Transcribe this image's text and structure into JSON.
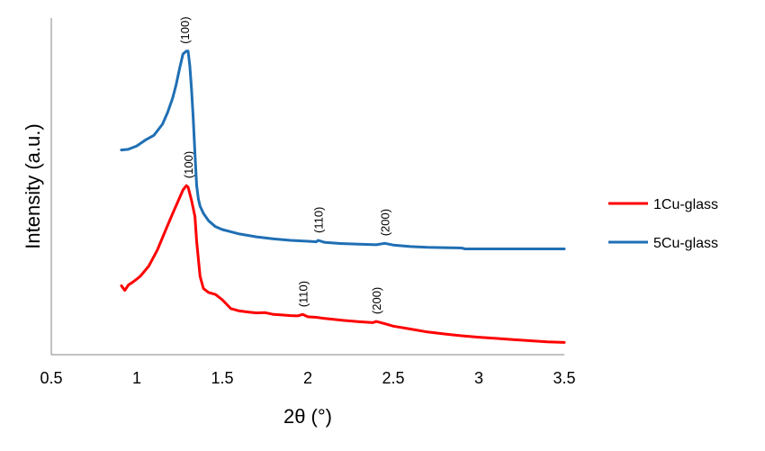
{
  "chart_data": {
    "type": "line",
    "xlabel": "2θ (°)",
    "ylabel": "Intensity (a.u.)",
    "xlim": [
      0.5,
      3.5
    ],
    "ylim": [
      0,
      100
    ],
    "x_ticks": [
      "0.5",
      "1",
      "1.5",
      "2",
      "2.5",
      "3",
      "3.5"
    ],
    "x_tick_values": [
      0.5,
      1,
      1.5,
      2,
      2.5,
      3,
      3.5
    ],
    "y_ticks_shown": false,
    "grid": false,
    "legend_position": "right",
    "series": [
      {
        "name": "1Cu-glass",
        "color": "#ff0000",
        "x": [
          0.91,
          0.93,
          0.95,
          0.98,
          1.02,
          1.07,
          1.12,
          1.17,
          1.21,
          1.24,
          1.27,
          1.29,
          1.3,
          1.32,
          1.34,
          1.35,
          1.37,
          1.39,
          1.42,
          1.46,
          1.5,
          1.55,
          1.6,
          1.65,
          1.7,
          1.75,
          1.8,
          1.85,
          1.9,
          1.94,
          1.97,
          2.0,
          2.05,
          2.1,
          2.2,
          2.3,
          2.38,
          2.4,
          2.45,
          2.5,
          2.6,
          2.7,
          2.8,
          2.9,
          3.0,
          3.1,
          3.2,
          3.3,
          3.4,
          3.5
        ],
        "y": [
          20.8,
          19.2,
          21.0,
          22.2,
          24.0,
          27.5,
          33.0,
          40.0,
          45.5,
          49.5,
          53.5,
          55.0,
          54.5,
          50.0,
          44.5,
          36.0,
          24.0,
          19.8,
          18.5,
          17.8,
          16.0,
          13.0,
          12.2,
          11.8,
          11.5,
          11.6,
          11.0,
          10.8,
          10.6,
          10.5,
          11.0,
          10.2,
          10.0,
          9.6,
          9.0,
          8.5,
          8.2,
          8.6,
          7.8,
          7.0,
          6.0,
          5.0,
          4.3,
          3.7,
          3.2,
          2.8,
          2.4,
          2.0,
          1.6,
          1.4
        ],
        "peak_labels": [
          {
            "x": 1.3,
            "y": 55.0,
            "text": "(100)"
          },
          {
            "x": 1.97,
            "y": 11.0,
            "text": "(110)"
          },
          {
            "x": 2.4,
            "y": 8.6,
            "text": "(200)"
          }
        ]
      },
      {
        "name": "5Cu-glass",
        "color": "#1f6fb4",
        "x": [
          0.91,
          0.95,
          1.0,
          1.05,
          1.1,
          1.15,
          1.18,
          1.21,
          1.23,
          1.25,
          1.27,
          1.29,
          1.3,
          1.31,
          1.32,
          1.33,
          1.34,
          1.35,
          1.36,
          1.37,
          1.39,
          1.42,
          1.46,
          1.5,
          1.6,
          1.7,
          1.8,
          1.9,
          2.0,
          2.05,
          2.06,
          2.1,
          2.2,
          2.3,
          2.4,
          2.45,
          2.5,
          2.6,
          2.7,
          2.8,
          2.9,
          2.92,
          3.0,
          3.1,
          3.2,
          3.3,
          3.4,
          3.5
        ],
        "y": [
          67.2,
          67.4,
          68.6,
          70.6,
          72.2,
          76.0,
          80.0,
          85.0,
          89.5,
          95.0,
          100.0,
          101.0,
          101.0,
          96.0,
          88.0,
          78.0,
          66.0,
          55.0,
          50.5,
          48.0,
          45.5,
          43.0,
          41.0,
          40.0,
          38.5,
          37.5,
          36.8,
          36.3,
          36.0,
          35.8,
          36.3,
          35.6,
          35.2,
          35.0,
          34.8,
          35.3,
          34.7,
          34.2,
          33.9,
          33.8,
          33.7,
          33.4,
          33.4,
          33.4,
          33.4,
          33.4,
          33.4,
          33.4
        ],
        "peak_labels": [
          {
            "x": 1.28,
            "y": 101.0,
            "text": "(100)"
          },
          {
            "x": 2.06,
            "y": 36.3,
            "text": "(110)"
          },
          {
            "x": 2.45,
            "y": 35.3,
            "text": "(200)"
          }
        ]
      }
    ]
  }
}
